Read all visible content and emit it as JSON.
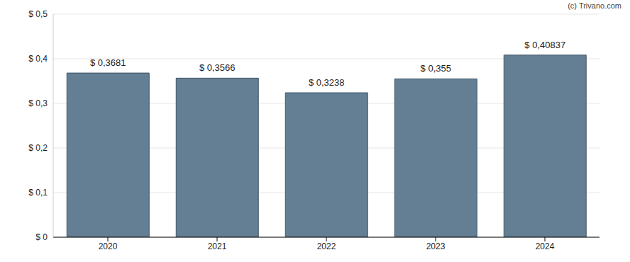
{
  "chart_data": {
    "type": "bar",
    "annotations": [
      "(c) Trivano.com"
    ],
    "categories": [
      "2020",
      "2021",
      "2022",
      "2023",
      "2024"
    ],
    "values": [
      0.3681,
      0.3566,
      0.3238,
      0.355,
      0.40837
    ],
    "value_labels": [
      "$ 0,3681",
      "$ 0,3566",
      "$ 0,3238",
      "$ 0,355",
      "$ 0,40837"
    ],
    "data_labels": true,
    "color": "#647f94",
    "ylim": [
      0,
      0.5
    ],
    "yticks": [
      {
        "value": 0,
        "label": "$ 0"
      },
      {
        "value": 0.1,
        "label": "$ 0,1"
      },
      {
        "value": 0.2,
        "label": "$ 0,2"
      },
      {
        "value": 0.3,
        "label": "$ 0,3"
      },
      {
        "value": 0.4,
        "label": "$ 0,4"
      },
      {
        "value": 0.5,
        "label": "$ 0,5"
      }
    ],
    "grid": true
  }
}
